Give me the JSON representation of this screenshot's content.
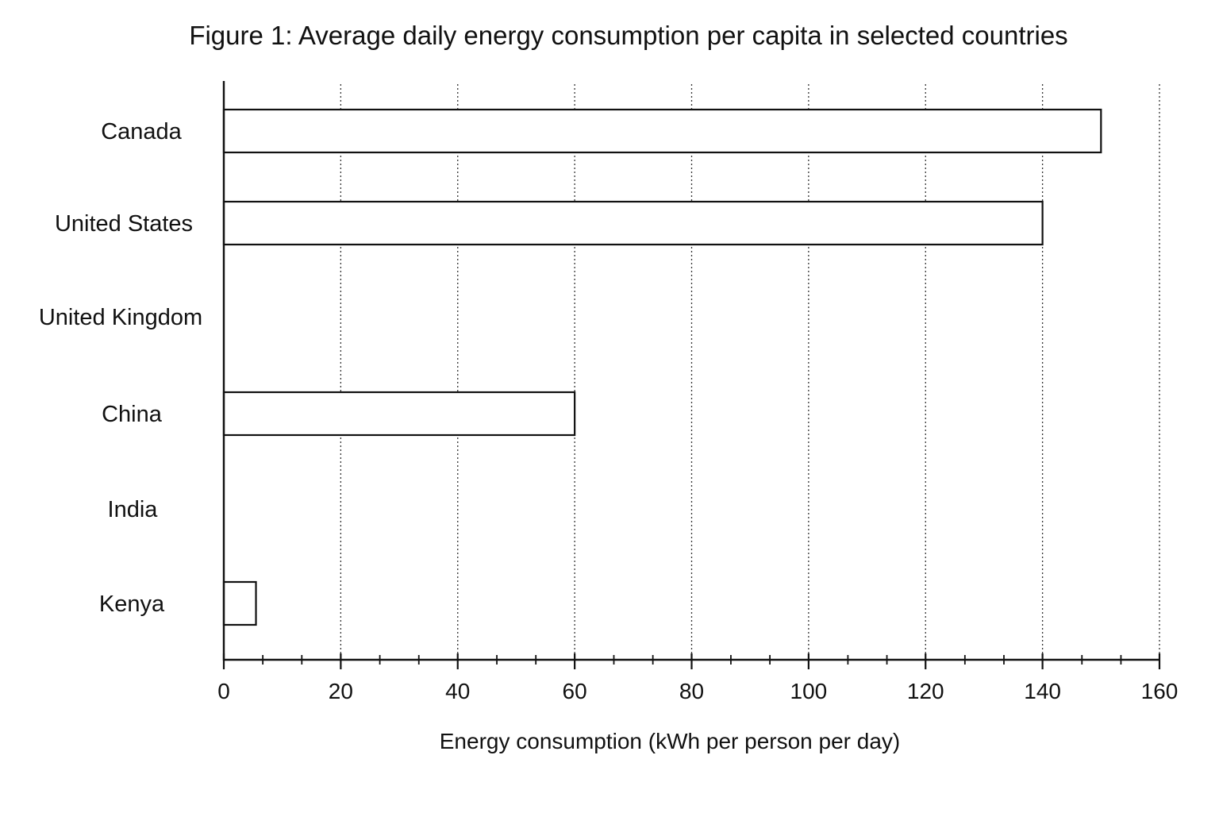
{
  "chart_data": {
    "type": "bar",
    "orientation": "horizontal",
    "title": "Figure 1: Average daily energy consumption per capita in selected countries",
    "xlabel": "Energy consumption (kWh per person per day)",
    "ylabel": "",
    "categories": [
      "Canada",
      "United States",
      "United Kingdom",
      "China",
      "India",
      "Kenya"
    ],
    "values": [
      150,
      140,
      0,
      60,
      0,
      5.5
    ],
    "xlim": [
      0,
      160
    ],
    "xticks": [
      0,
      20,
      40,
      60,
      80,
      100,
      120,
      140,
      160
    ],
    "minor_tick_step": 6.67,
    "grid": "vertical-dotted",
    "legend": "none",
    "bar_fill": "#ffffff",
    "bar_stroke": "#111111"
  }
}
